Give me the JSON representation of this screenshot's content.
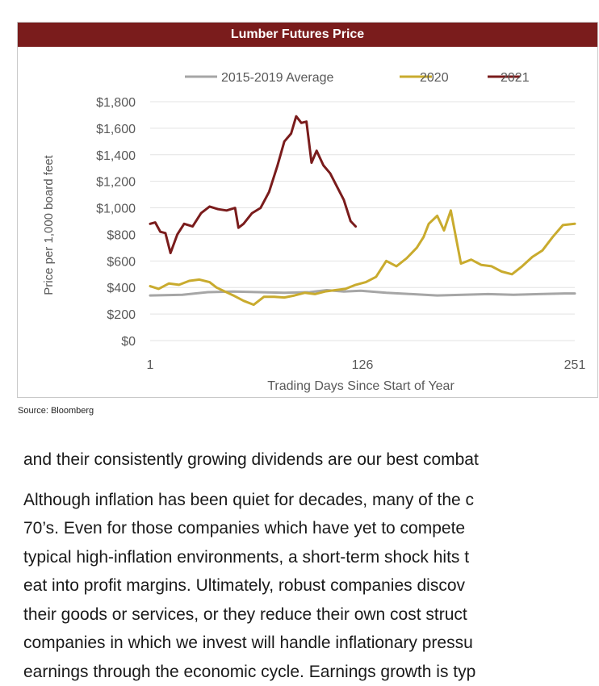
{
  "figure": {
    "header_bg": "#7a1c1c",
    "source": "Source: Bloomberg"
  },
  "chart_data": {
    "type": "line",
    "title": "Lumber Futures Price",
    "xlabel": "Trading Days Since Start of Year",
    "ylabel": "Price per 1,000 board feet",
    "xlim": [
      1,
      251
    ],
    "ylim": [
      0,
      1800
    ],
    "xticks": [
      "1",
      "126",
      "251"
    ],
    "yticks": [
      "$1,800",
      "$1,600",
      "$1,400",
      "$1,200",
      "$1,000",
      "$800",
      "$600",
      "$400",
      "$200",
      "$0"
    ],
    "grid": true,
    "legend_position": "top",
    "series": [
      {
        "name": "2015-2019 Average",
        "color": "#a6a6a6",
        "x": [
          1,
          20,
          35,
          50,
          65,
          80,
          95,
          105,
          115,
          125,
          140,
          155,
          170,
          185,
          200,
          215,
          230,
          245,
          251
        ],
        "y": [
          340,
          345,
          365,
          370,
          365,
          360,
          365,
          380,
          370,
          375,
          360,
          350,
          340,
          345,
          350,
          345,
          350,
          355,
          355
        ]
      },
      {
        "name": "2020",
        "color": "#c9ab2e",
        "x": [
          1,
          6,
          12,
          18,
          24,
          30,
          36,
          40,
          45,
          50,
          56,
          62,
          68,
          74,
          80,
          86,
          92,
          98,
          104,
          110,
          116,
          122,
          128,
          134,
          140,
          146,
          152,
          158,
          162,
          165,
          170,
          174,
          178,
          184,
          190,
          196,
          202,
          208,
          214,
          220,
          226,
          232,
          238,
          244,
          251
        ],
        "y": [
          410,
          390,
          430,
          420,
          450,
          460,
          440,
          400,
          370,
          340,
          300,
          270,
          330,
          330,
          325,
          340,
          360,
          350,
          370,
          380,
          390,
          420,
          440,
          480,
          600,
          560,
          620,
          700,
          780,
          880,
          940,
          830,
          980,
          580,
          610,
          570,
          560,
          520,
          500,
          560,
          630,
          680,
          780,
          870,
          880
        ]
      },
      {
        "name": "2021",
        "color": "#7a1c1c",
        "x": [
          1,
          4,
          7,
          10,
          13,
          17,
          21,
          26,
          31,
          36,
          41,
          46,
          51,
          53,
          56,
          61,
          66,
          71,
          76,
          80,
          84,
          87,
          90,
          93,
          96,
          99,
          103,
          107,
          111,
          115,
          119,
          122
        ],
        "y": [
          880,
          890,
          820,
          810,
          660,
          800,
          880,
          860,
          960,
          1010,
          990,
          980,
          1000,
          850,
          880,
          960,
          1000,
          1120,
          1320,
          1500,
          1560,
          1690,
          1640,
          1650,
          1340,
          1430,
          1320,
          1260,
          1160,
          1060,
          900,
          860
        ]
      }
    ]
  },
  "text": {
    "paragraph1": "and their consistently growing dividends are our best combat",
    "paragraph2_lines": [
      "Although inflation has been quiet for decades, many of the c",
      "70’s.  Even for those companies which have yet to compete",
      "typical high-inflation environments, a short-term shock hits t",
      "eat into profit margins.  Ultimately, robust companies discov",
      "their goods or services, or they reduce their own cost struct",
      "companies in which we invest will handle inflationary pressu",
      "earnings through the economic cycle.  Earnings growth is typ"
    ]
  }
}
